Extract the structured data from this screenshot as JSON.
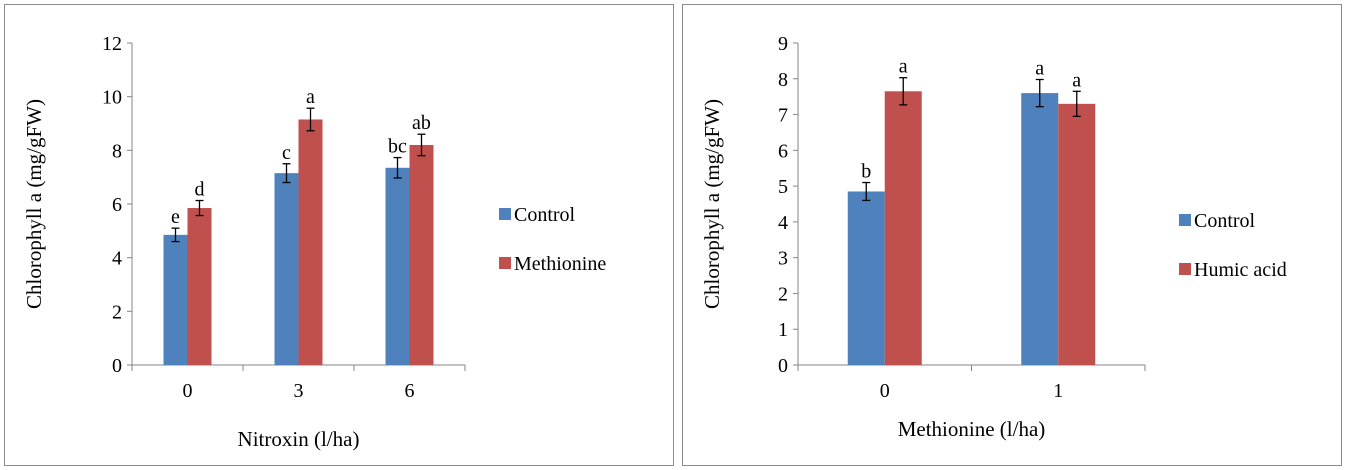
{
  "colors": {
    "control": "#4f81bd",
    "treatment": "#c0504d",
    "axis": "#868686",
    "text": "#000000"
  },
  "chart_data": [
    {
      "type": "bar",
      "title": "",
      "xlabel": "Nitroxin (l/ha)",
      "ylabel": "Chlorophyll a (mg/gFW)",
      "ylim": [
        0,
        12
      ],
      "yticks": [
        0,
        2,
        4,
        6,
        8,
        10,
        12
      ],
      "categories": [
        "0",
        "3",
        "6"
      ],
      "grid": false,
      "legend_position": "right",
      "series": [
        {
          "name": "Control",
          "values": [
            4.85,
            7.15,
            7.35
          ],
          "errors": [
            0.25,
            0.35,
            0.38
          ],
          "labels": [
            "e",
            "c",
            "bc"
          ]
        },
        {
          "name": "Methionine",
          "values": [
            5.85,
            9.15,
            8.2
          ],
          "errors": [
            0.28,
            0.42,
            0.4
          ],
          "labels": [
            "d",
            "a",
            "ab"
          ]
        }
      ]
    },
    {
      "type": "bar",
      "title": "",
      "xlabel": "Methionine (l/ha)",
      "ylabel": "Chlorophyll a (mg/gFW)",
      "ylim": [
        0,
        9
      ],
      "yticks": [
        0,
        1,
        2,
        3,
        4,
        5,
        6,
        7,
        8,
        9
      ],
      "categories": [
        "0",
        "1"
      ],
      "grid": false,
      "legend_position": "right",
      "series": [
        {
          "name": "Control",
          "values": [
            4.85,
            7.6
          ],
          "errors": [
            0.25,
            0.38
          ],
          "labels": [
            "b",
            "a"
          ]
        },
        {
          "name": "Humic acid",
          "values": [
            7.65,
            7.3
          ],
          "errors": [
            0.38,
            0.35
          ],
          "labels": [
            "a",
            "a"
          ]
        }
      ]
    }
  ]
}
